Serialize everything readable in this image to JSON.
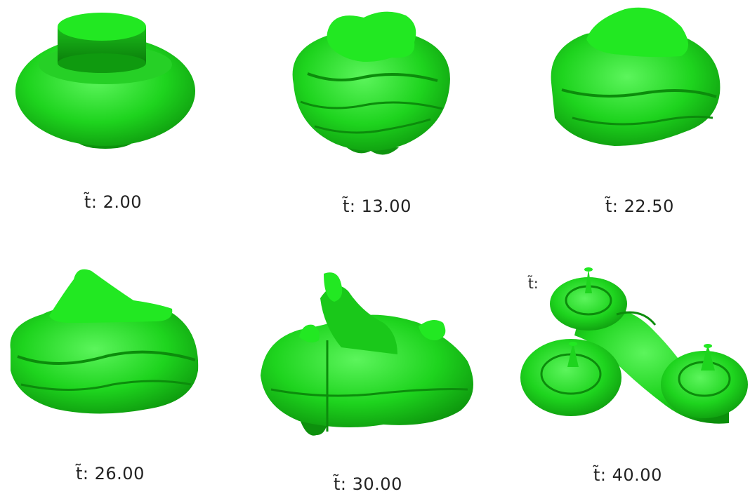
{
  "frames": [
    {
      "label": "t̃:  2.00"
    },
    {
      "label": "t̃: 13.00"
    },
    {
      "label": "t̃: 22.50"
    },
    {
      "label": "t̃: 26.00"
    },
    {
      "label": "t̃: 30.00"
    },
    {
      "label": "t̃: 40.00"
    }
  ],
  "stray_label": "t̃:",
  "colors": {
    "base": "#1fd61f",
    "light": "#4cf04c",
    "dark": "#0a8a0a",
    "top": "#22e822"
  }
}
